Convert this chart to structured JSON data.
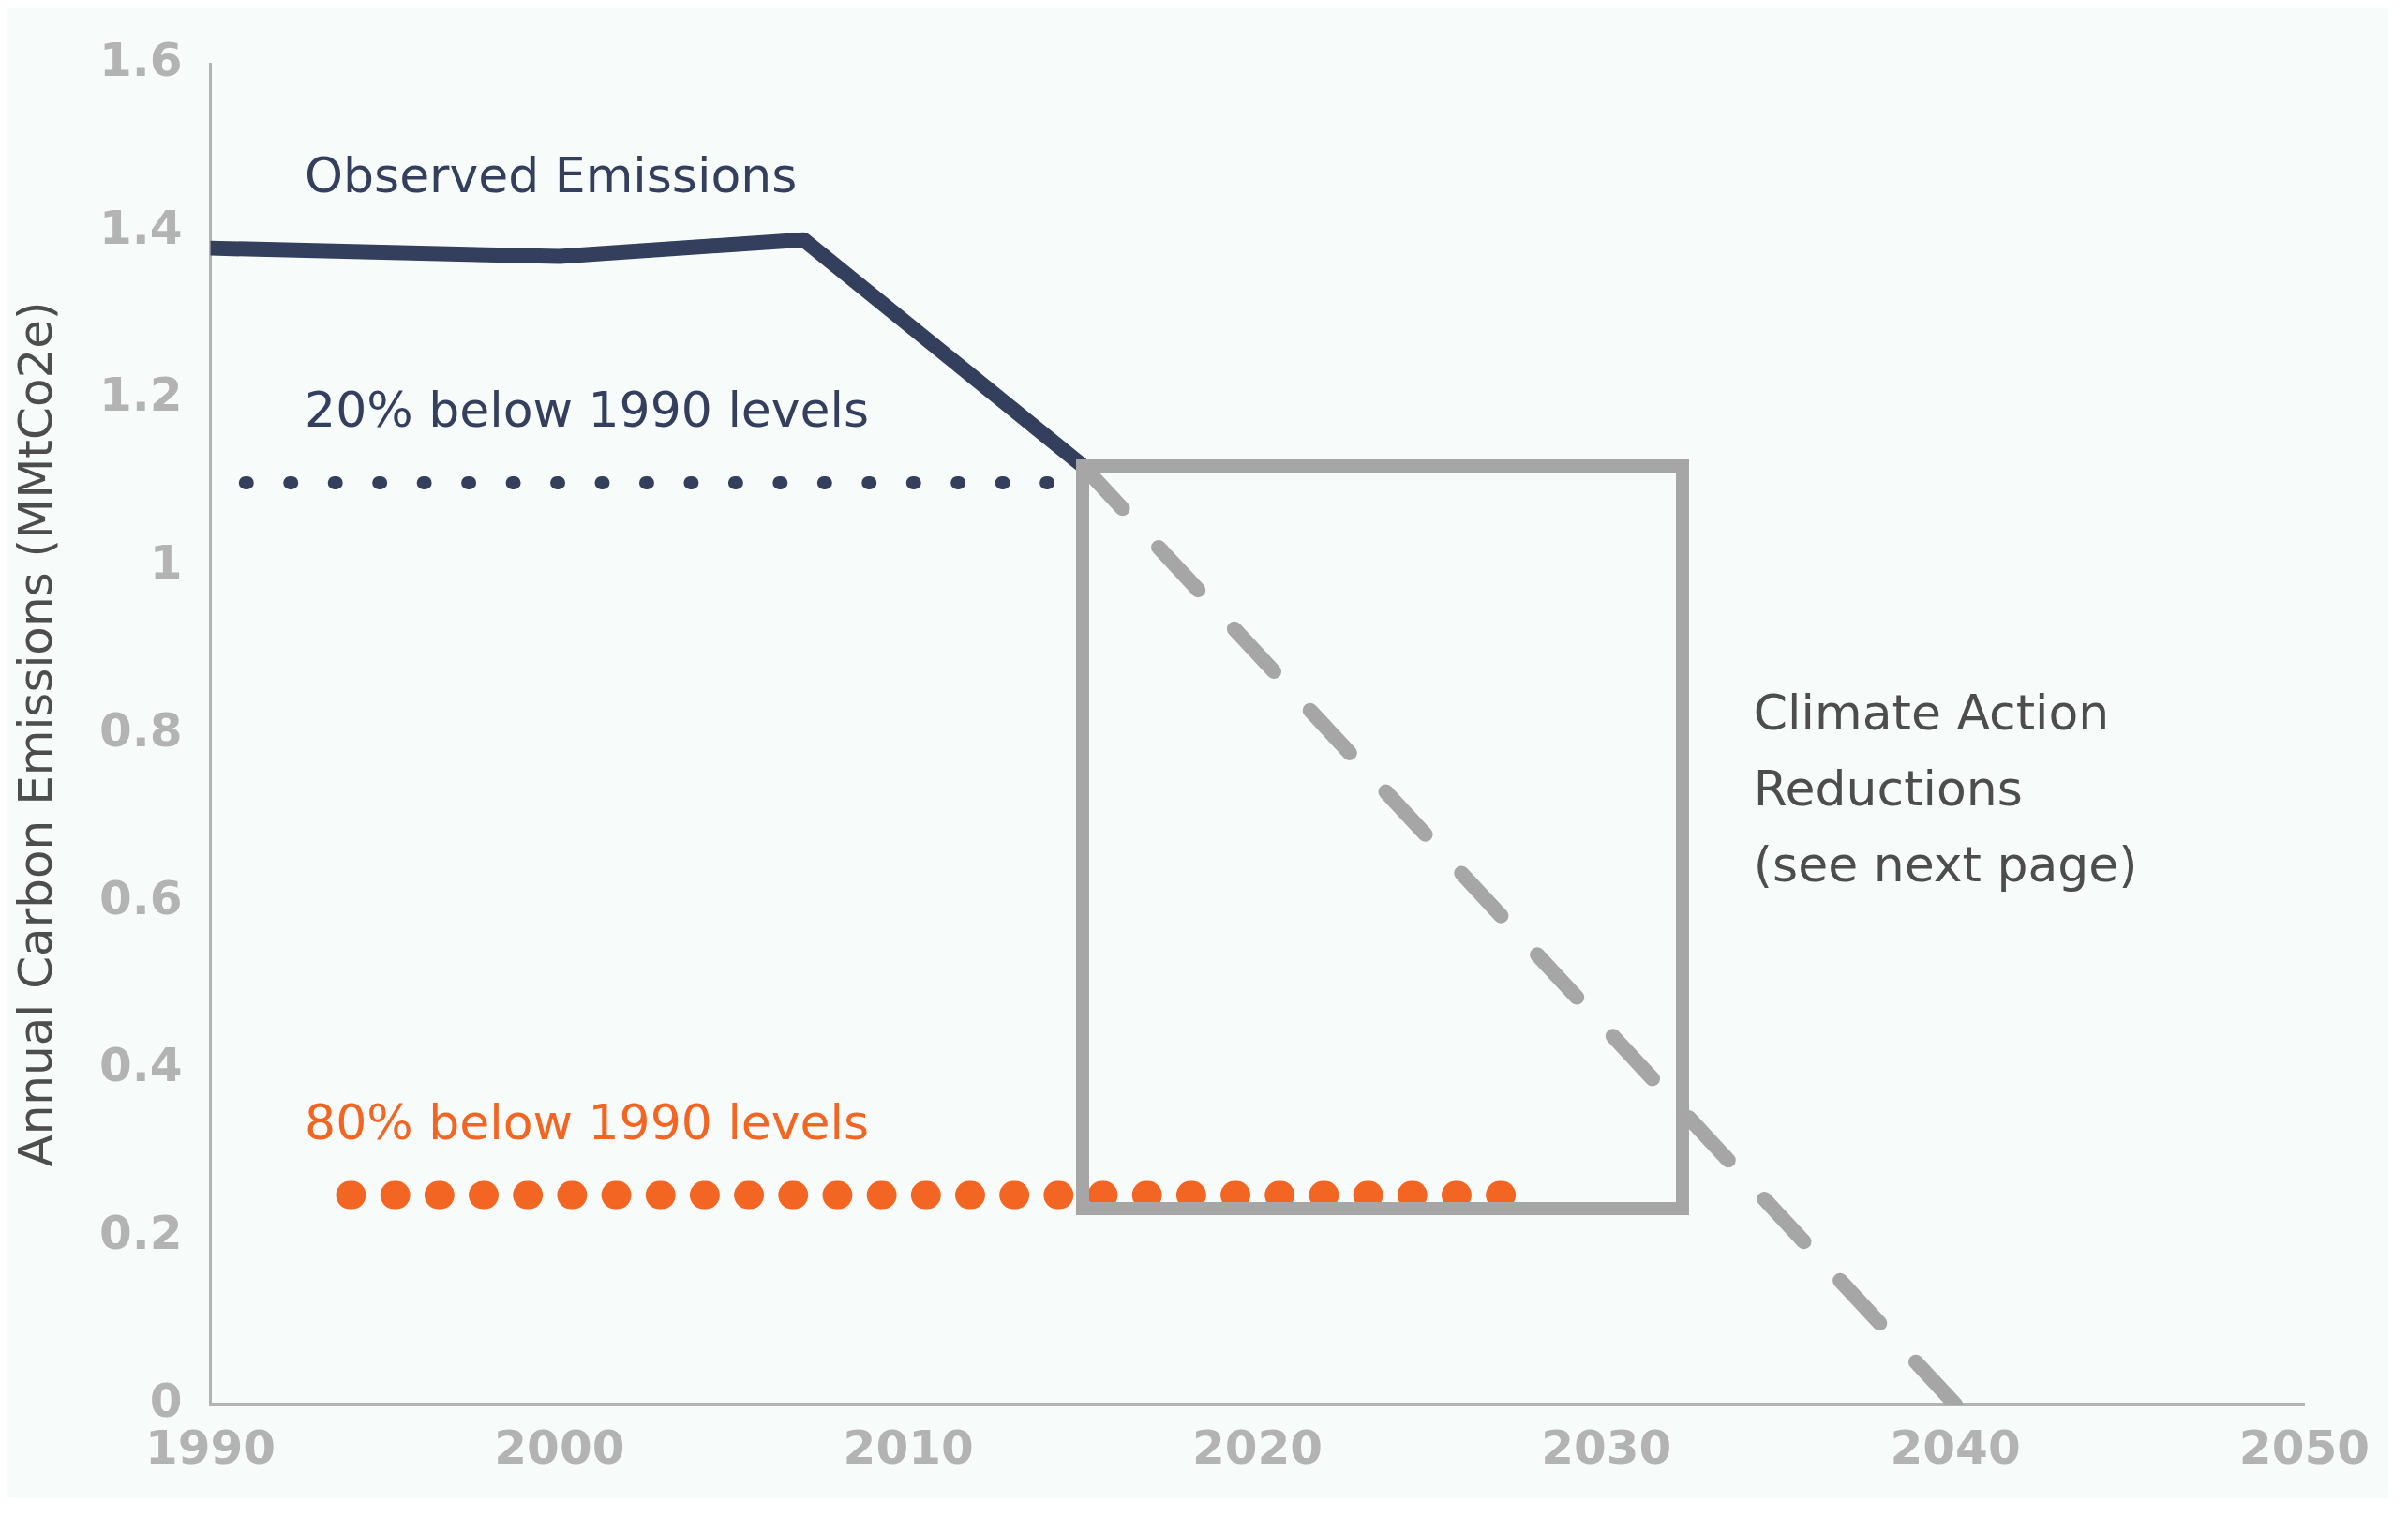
{
  "chart_data": {
    "type": "line",
    "ylabel": "Annual Carbon Emissions (MMtCo2e)",
    "xlim": [
      1990,
      2050
    ],
    "xticks": [
      1990,
      2000,
      2010,
      2020,
      2030,
      2040,
      2050
    ],
    "ylim": [
      0,
      1.6
    ],
    "yticks": [
      0,
      0.2,
      0.4,
      0.6,
      0.8,
      1,
      1.2,
      1.4,
      1.6
    ],
    "grid": false,
    "legend": false,
    "marker": "none",
    "series": [
      {
        "name": "Observed Emissions",
        "color": "#333f5c",
        "x": [
          1990,
          2000,
          2007,
          2015
        ],
        "values": [
          1.38,
          1.37,
          1.39,
          1.12
        ],
        "line_style": "solid"
      },
      {
        "name": "20% below 1990 levels",
        "color": "#333f5c",
        "x": [
          1991,
          2014
        ],
        "values": [
          1.1,
          1.1
        ],
        "line_style": "dotted"
      },
      {
        "name": "80% below 1990 levels",
        "color": "#f26522",
        "x": [
          1994,
          2027
        ],
        "values": [
          0.25,
          0.25
        ],
        "line_style": "dotted"
      },
      {
        "color": "#a6a6a6",
        "x": [
          2015,
          2040
        ],
        "values": [
          1.12,
          0
        ],
        "line_style": "dashed"
      }
    ],
    "annotations": [
      "Climate Action Reductions (see next page)"
    ]
  }
}
